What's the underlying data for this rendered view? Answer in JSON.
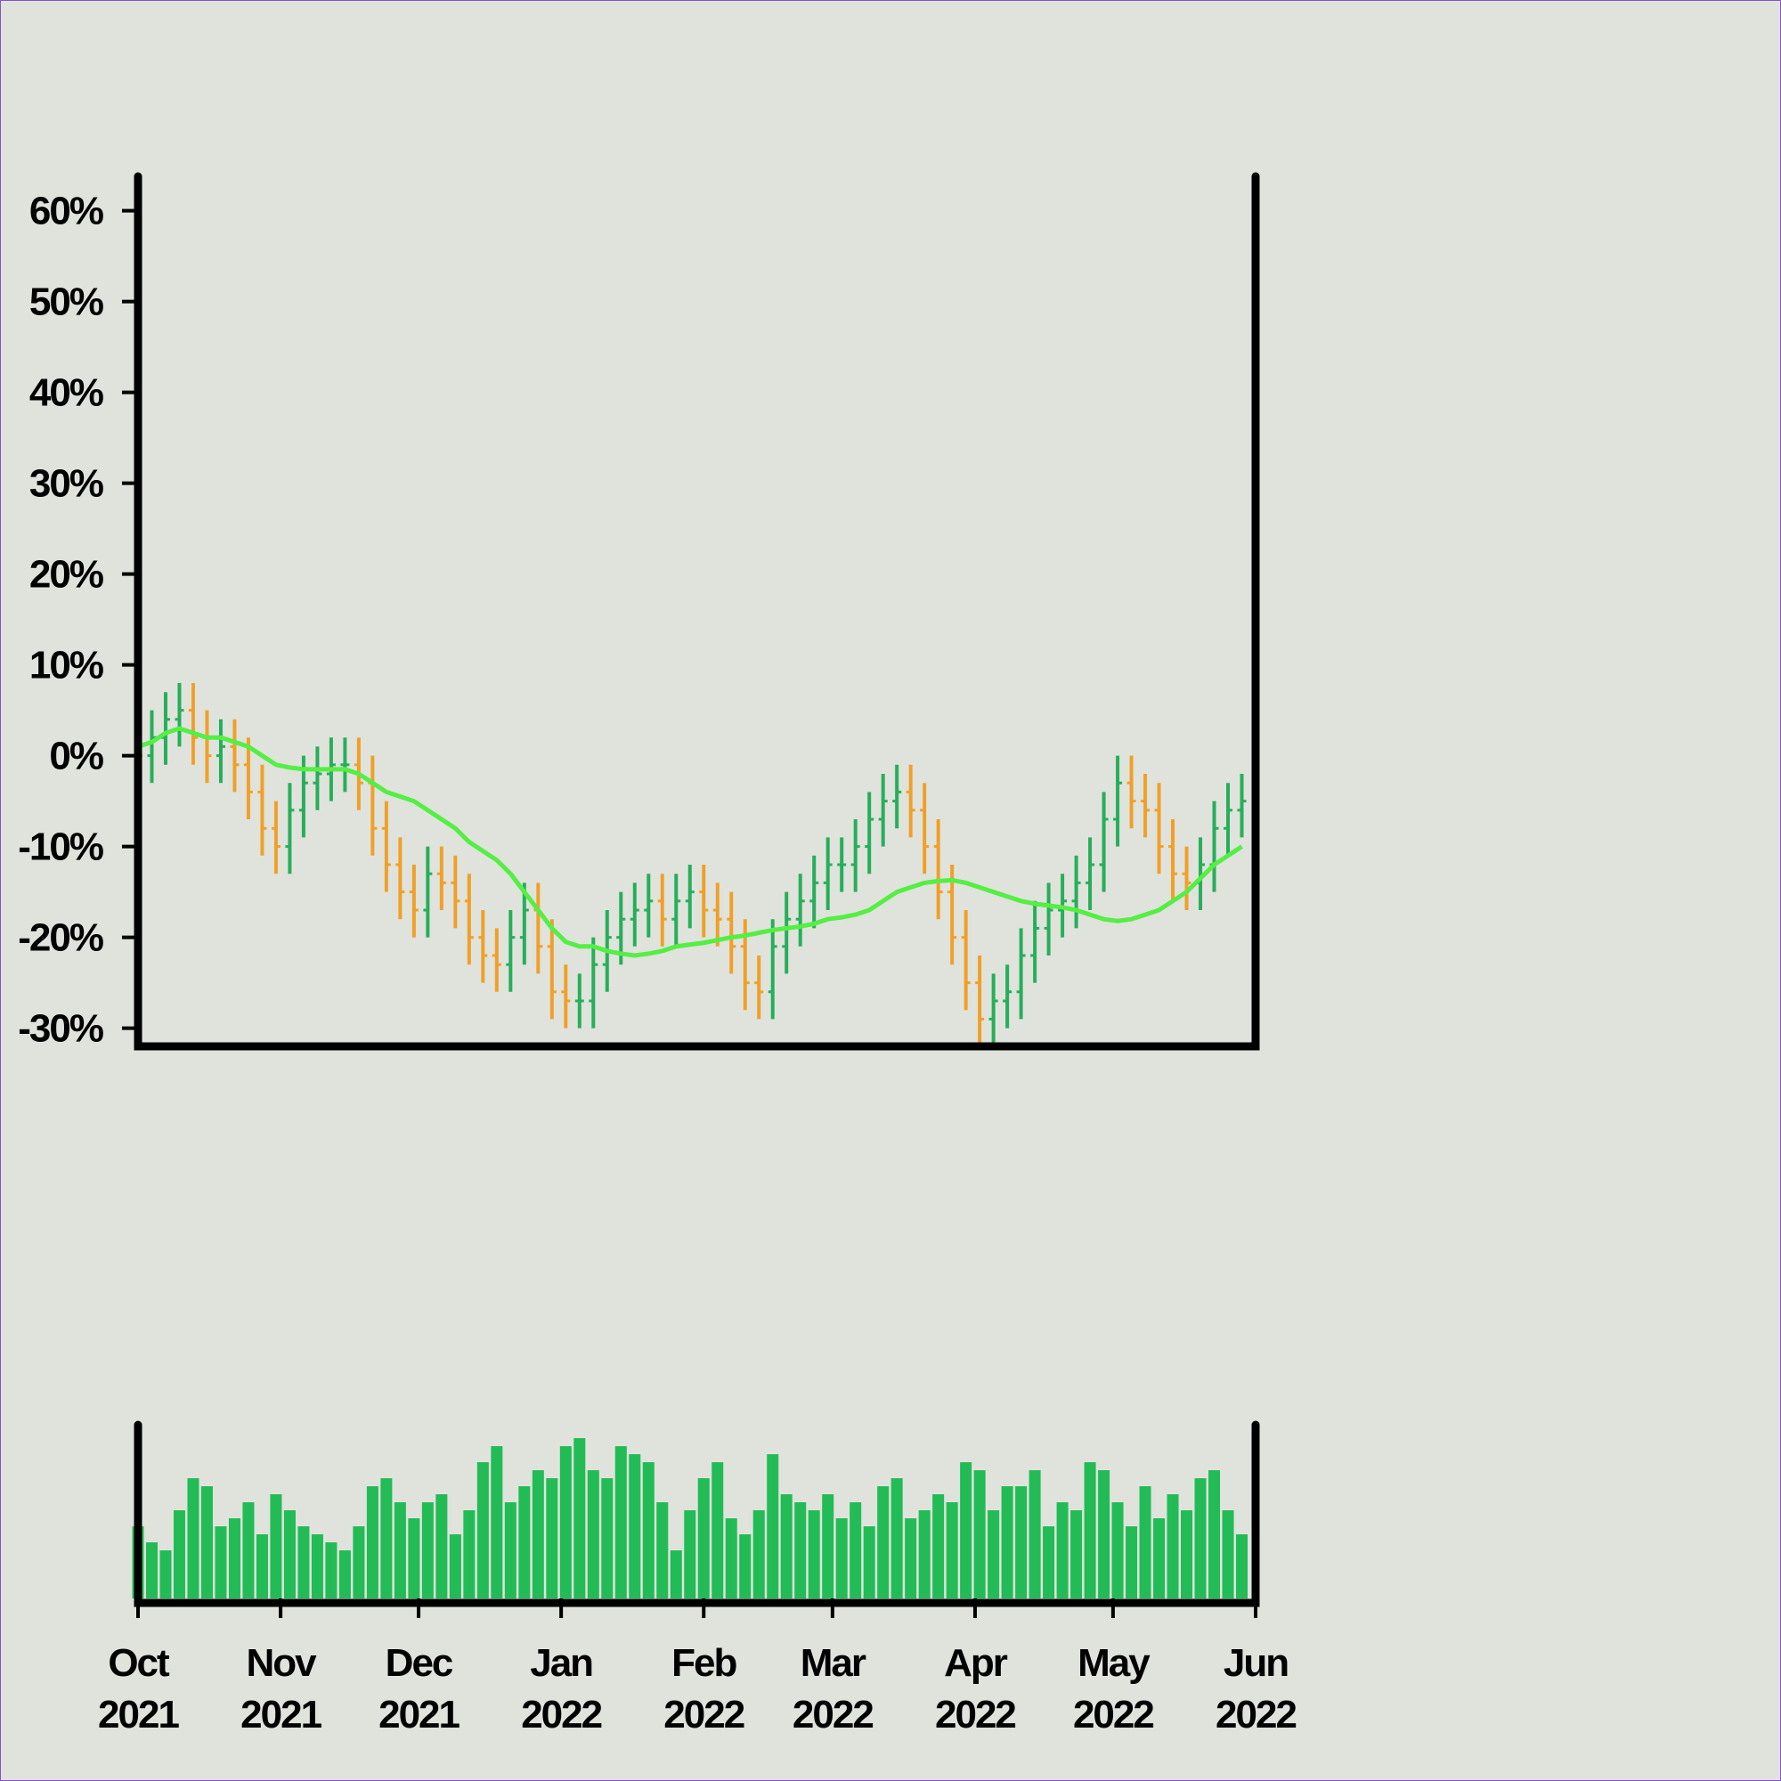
{
  "chart_data": {
    "type": "ohlc",
    "x": [
      0,
      3,
      6,
      9,
      12,
      15,
      18,
      21,
      24,
      27,
      30,
      33,
      36,
      39,
      42,
      45,
      48,
      51,
      54,
      57,
      60,
      63,
      66,
      69,
      72,
      75,
      78,
      81,
      84,
      87,
      90,
      93,
      96,
      99,
      102,
      105,
      108,
      111,
      114,
      117,
      120,
      123,
      126,
      129,
      132,
      135,
      138,
      141,
      144,
      147,
      150,
      153,
      156,
      159,
      162,
      165,
      168,
      171,
      174,
      177,
      180,
      183,
      186,
      189,
      192,
      195,
      198,
      201,
      204,
      207,
      210,
      213,
      216,
      219,
      222,
      225,
      228,
      231,
      234,
      237,
      240
    ],
    "xlim": [
      0,
      243
    ],
    "xticks": [
      {
        "value": 0,
        "label": "Oct 2021"
      },
      {
        "value": 31,
        "label": "Nov 2021"
      },
      {
        "value": 61,
        "label": "Dec 2021"
      },
      {
        "value": 92,
        "label": "Jan 2022"
      },
      {
        "value": 123,
        "label": "Feb 2022"
      },
      {
        "value": 151,
        "label": "Mar 2022"
      },
      {
        "value": 182,
        "label": "Apr 2022"
      },
      {
        "value": 212,
        "label": "May 2022"
      },
      {
        "value": 243,
        "label": "Jun 2022"
      }
    ],
    "ylim": [
      -32,
      68
    ],
    "yticks": [
      {
        "value": -30,
        "label": "-30%"
      },
      {
        "value": -20,
        "label": "-20%"
      },
      {
        "value": -10,
        "label": "-10%"
      },
      {
        "value": 0,
        "label": "0%"
      },
      {
        "value": 10,
        "label": "10%"
      },
      {
        "value": 20,
        "label": "20%"
      },
      {
        "value": 30,
        "label": "30%"
      },
      {
        "value": 40,
        "label": "40%"
      },
      {
        "value": 50,
        "label": "50%"
      },
      {
        "value": 60,
        "label": "60%"
      }
    ],
    "up_color": "#27ae5a",
    "down_color": "#f0a028",
    "open": [
      2,
      0,
      2,
      4,
      5,
      2,
      0,
      1,
      -1,
      -4,
      -8,
      -10,
      -6,
      -3,
      -2,
      -1,
      -1,
      -3,
      -8,
      -12,
      -15,
      -17,
      -13,
      -14,
      -16,
      -20,
      -22,
      -23,
      -20,
      -17,
      -21,
      -26,
      -27,
      -27,
      -23,
      -20,
      -18,
      -17,
      -16,
      -18,
      -16,
      -15,
      -17,
      -18,
      -21,
      -25,
      -26,
      -21,
      -18,
      -16,
      -14,
      -12,
      -12,
      -10,
      -7,
      -5,
      -4,
      -6,
      -10,
      -15,
      -20,
      -25,
      -29,
      -27,
      -26,
      -22,
      -19,
      -17,
      -16,
      -14,
      -12,
      -7,
      -3,
      -5,
      -6,
      -10,
      -13,
      -14,
      -12,
      -8,
      -6
    ],
    "high": [
      5,
      5,
      7,
      8,
      8,
      5,
      4,
      4,
      2,
      -1,
      -5,
      -3,
      0,
      1,
      2,
      2,
      2,
      0,
      -5,
      -9,
      -12,
      -10,
      -10,
      -11,
      -13,
      -17,
      -19,
      -17,
      -14,
      -14,
      -18,
      -23,
      -24,
      -20,
      -17,
      -15,
      -14,
      -13,
      -13,
      -13,
      -12,
      -12,
      -14,
      -15,
      -18,
      -22,
      -18,
      -15,
      -13,
      -11,
      -9,
      -9,
      -7,
      -4,
      -2,
      -1,
      -1,
      -3,
      -7,
      -12,
      -17,
      -22,
      -24,
      -23,
      -19,
      -16,
      -14,
      -13,
      -11,
      -9,
      -4,
      0,
      0,
      -2,
      -3,
      -7,
      -10,
      -9,
      -5,
      -3,
      -2
    ],
    "low": [
      -3,
      -3,
      -1,
      1,
      -1,
      -3,
      -3,
      -4,
      -7,
      -11,
      -13,
      -13,
      -9,
      -6,
      -5,
      -4,
      -6,
      -11,
      -15,
      -18,
      -20,
      -20,
      -17,
      -19,
      -23,
      -25,
      -26,
      -26,
      -23,
      -24,
      -29,
      -30,
      -30,
      -30,
      -26,
      -23,
      -21,
      -20,
      -21,
      -21,
      -19,
      -20,
      -21,
      -24,
      -28,
      -29,
      -29,
      -24,
      -21,
      -19,
      -17,
      -15,
      -15,
      -13,
      -10,
      -8,
      -9,
      -13,
      -18,
      -23,
      -28,
      -32,
      -32,
      -30,
      -29,
      -25,
      -22,
      -20,
      -19,
      -17,
      -15,
      -10,
      -8,
      -9,
      -13,
      -16,
      -17,
      -17,
      -15,
      -11,
      -9
    ],
    "close": [
      0,
      2,
      4,
      5,
      2,
      0,
      1,
      -1,
      -4,
      -8,
      -10,
      -6,
      -3,
      -2,
      -1,
      -1,
      -3,
      -8,
      -12,
      -15,
      -17,
      -13,
      -14,
      -16,
      -20,
      -22,
      -23,
      -20,
      -17,
      -21,
      -26,
      -27,
      -27,
      -23,
      -20,
      -18,
      -17,
      -16,
      -18,
      -16,
      -15,
      -17,
      -18,
      -21,
      -25,
      -26,
      -21,
      -18,
      -16,
      -14,
      -12,
      -12,
      -10,
      -7,
      -5,
      -4,
      -6,
      -10,
      -15,
      -20,
      -25,
      -29,
      -27,
      -26,
      -22,
      -19,
      -17,
      -16,
      -14,
      -12,
      -7,
      -3,
      -5,
      -6,
      -10,
      -13,
      -14,
      -12,
      -8,
      -6,
      -5
    ],
    "moving_average": {
      "color": "#55ee44",
      "values": [
        1,
        1.5,
        2.5,
        3,
        2.5,
        2,
        2,
        1.5,
        1,
        0,
        -1,
        -1.3,
        -1.5,
        -1.5,
        -1.5,
        -1.5,
        -2,
        -3,
        -4,
        -4.5,
        -5,
        -6,
        -7,
        -8,
        -9.5,
        -10.5,
        -11.5,
        -13,
        -15,
        -17,
        -19,
        -20.5,
        -21,
        -21,
        -21.5,
        -21.8,
        -22,
        -21.8,
        -21.5,
        -21,
        -20.8,
        -20.6,
        -20.3,
        -20,
        -19.8,
        -19.5,
        -19.2,
        -19,
        -18.8,
        -18.5,
        -18,
        -17.8,
        -17.5,
        -17,
        -16,
        -15,
        -14.5,
        -14,
        -13.8,
        -13.7,
        -14,
        -14.5,
        -15,
        -15.5,
        -16,
        -16.3,
        -16.5,
        -16.7,
        -17,
        -17.5,
        -18,
        -18.2,
        -18,
        -17.5,
        -17,
        -16,
        -15,
        -13.5,
        -12,
        -11,
        -10
      ]
    },
    "volume": {
      "color": "#22bb55",
      "ylim": [
        0,
        100
      ],
      "values": [
        45,
        35,
        30,
        55,
        75,
        70,
        45,
        50,
        60,
        40,
        65,
        55,
        45,
        40,
        35,
        30,
        45,
        70,
        75,
        60,
        50,
        60,
        65,
        40,
        55,
        85,
        95,
        60,
        70,
        80,
        75,
        95,
        100,
        80,
        75,
        95,
        90,
        85,
        60,
        30,
        55,
        75,
        85,
        50,
        40,
        55,
        90,
        65,
        60,
        55,
        65,
        50,
        60,
        45,
        70,
        75,
        50,
        55,
        65,
        60,
        85,
        80,
        55,
        70,
        70,
        80,
        45,
        60,
        55,
        85,
        80,
        60,
        45,
        70,
        50,
        65,
        55,
        75,
        80,
        55,
        40
      ]
    }
  }
}
